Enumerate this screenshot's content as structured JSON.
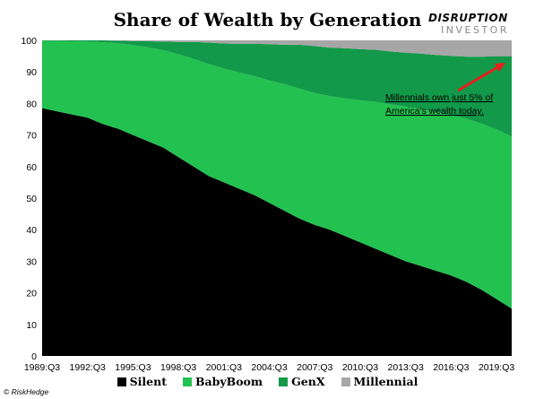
{
  "header": {
    "title": "Share of Wealth by Generation"
  },
  "logo": {
    "top": "DISRUPTION",
    "bottom": "INVESTOR"
  },
  "credit": "© RiskHedge",
  "annotation": {
    "line1": "Millennials own just 5% of",
    "line2": "America's wealth today."
  },
  "colors": {
    "Silent": "#000000",
    "BabyBoom": "#23c14f",
    "GenX": "#12994a",
    "Millennial": "#a6a6a6",
    "arrow": "#e8201c"
  },
  "chart_data": {
    "type": "area",
    "stacked": true,
    "title": "Share of Wealth by Generation",
    "xlabel": "",
    "ylabel": "",
    "ylim": [
      0,
      100
    ],
    "yticks": [
      0,
      10,
      20,
      30,
      40,
      50,
      60,
      70,
      80,
      90,
      100
    ],
    "xticks": [
      "1989:Q3",
      "1992:Q3",
      "1995:Q3",
      "1998:Q3",
      "2001:Q3",
      "2004:Q3",
      "2007:Q3",
      "2010:Q3",
      "2013:Q3",
      "2016:Q3",
      "2019:Q3"
    ],
    "x": [
      "1989:Q3",
      "1990:Q3",
      "1991:Q3",
      "1992:Q3",
      "1993:Q3",
      "1994:Q3",
      "1995:Q3",
      "1996:Q3",
      "1997:Q3",
      "1998:Q3",
      "1999:Q3",
      "2000:Q3",
      "2001:Q3",
      "2002:Q3",
      "2003:Q3",
      "2004:Q3",
      "2005:Q3",
      "2006:Q3",
      "2007:Q3",
      "2008:Q3",
      "2009:Q3",
      "2010:Q3",
      "2011:Q3",
      "2012:Q3",
      "2013:Q3",
      "2014:Q3",
      "2015:Q3",
      "2016:Q3",
      "2017:Q3",
      "2018:Q3",
      "2019:Q3",
      "2020:Q3"
    ],
    "series": [
      {
        "name": "Silent",
        "values": [
          78.5,
          77.5,
          76.5,
          75.5,
          73.5,
          72,
          70,
          68,
          66,
          63,
          60,
          57,
          55,
          53,
          51,
          48.5,
          46,
          43.5,
          41.5,
          40,
          38,
          36,
          34,
          32,
          30,
          28.5,
          27,
          25.5,
          23.5,
          21,
          18,
          15
        ]
      },
      {
        "name": "BabyBoom",
        "values": [
          21.3,
          22.3,
          23.2,
          24.1,
          25.9,
          27.1,
          28.5,
          29.8,
          30.9,
          32.6,
          34.1,
          35.5,
          36.1,
          36.8,
          37.7,
          38.8,
          40.1,
          41.2,
          41.8,
          42.3,
          43.6,
          45,
          46.5,
          47.7,
          49,
          49.7,
          50.2,
          50.8,
          51.7,
          52.6,
          53.8,
          54.5
        ]
      },
      {
        "name": "GenX",
        "values": [
          0.2,
          0.2,
          0.3,
          0.4,
          0.6,
          0.8,
          1.3,
          1.9,
          2.7,
          3.9,
          5.4,
          6.8,
          7.9,
          9.1,
          10.2,
          11.5,
          12.5,
          13.9,
          14.9,
          15.4,
          15.9,
          16.2,
          16.5,
          16.8,
          17.1,
          17.6,
          18.2,
          18.8,
          19.6,
          21.2,
          23.2,
          25.5
        ]
      },
      {
        "name": "Millennial",
        "values": [
          0,
          0,
          0,
          0,
          0,
          0.1,
          0.2,
          0.3,
          0.4,
          0.5,
          0.5,
          0.7,
          1,
          1.1,
          1.1,
          1.2,
          1.4,
          1.4,
          1.8,
          2.3,
          2.5,
          2.8,
          3,
          3.5,
          3.9,
          4.2,
          4.6,
          4.9,
          5.2,
          5.2,
          5,
          5
        ]
      }
    ],
    "legend": {
      "placement": "bottom",
      "entries": [
        "Silent",
        "BabyBoom",
        "GenX",
        "Millennial"
      ]
    }
  }
}
